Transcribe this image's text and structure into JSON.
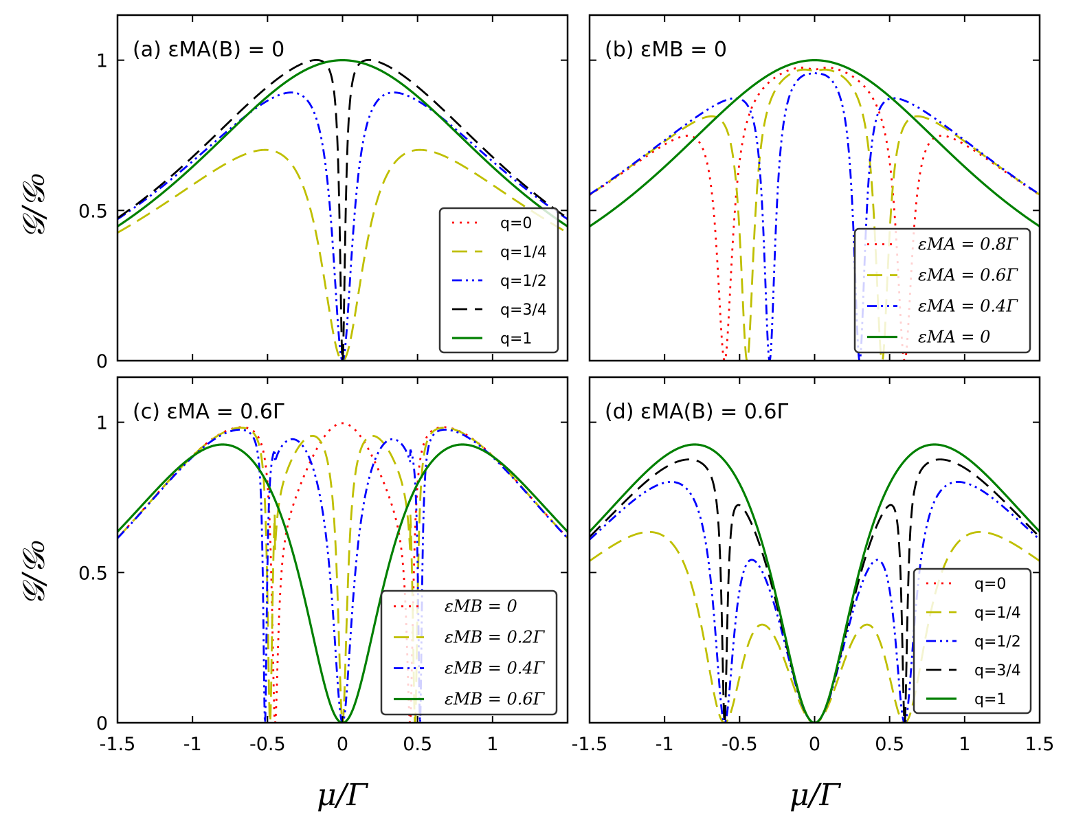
{
  "figure": {
    "ylabel": "𝒢/𝒢₀",
    "xlabel": "μ/Γ"
  },
  "colors": {
    "red": "#ff0000",
    "yellow": "#bfbf00",
    "blue": "#0000ff",
    "black": "#000000",
    "green": "#008000"
  },
  "chart_data": [
    {
      "type": "line",
      "panel": "a",
      "title": "(a) εMA(B) = 0",
      "xlim": [
        -1.5,
        1.5
      ],
      "ylim": [
        0,
        1.15
      ],
      "yticks": [
        "0",
        "0.5",
        "1"
      ],
      "xticks": [],
      "legend": "bottom-right",
      "model": "a",
      "series": [
        {
          "name": "q=0",
          "style": "red",
          "param": 0
        },
        {
          "name": "q=1/4",
          "style": "yellow",
          "param": 0.25
        },
        {
          "name": "q=1/2",
          "style": "blue",
          "param": 0.5
        },
        {
          "name": "q=3/4",
          "style": "black",
          "param": 0.75
        },
        {
          "name": "q=1",
          "style": "green",
          "param": 1
        }
      ]
    },
    {
      "type": "line",
      "panel": "b",
      "title": "(b) εMB = 0",
      "xlim": [
        -1.5,
        1.5
      ],
      "ylim": [
        0,
        1.15
      ],
      "yticks": [],
      "xticks": [],
      "legend": "bottom-right",
      "model": "b",
      "series": [
        {
          "name": "εMA = 0.8Γ",
          "style": "red",
          "param": 0.8
        },
        {
          "name": "εMA = 0.6Γ",
          "style": "yellow",
          "param": 0.6
        },
        {
          "name": "εMA = 0.4Γ",
          "style": "blue",
          "param": 0.4
        },
        {
          "name": "εMA = 0",
          "style": "green",
          "param": 0
        }
      ]
    },
    {
      "type": "line",
      "panel": "c",
      "title": "(c) εMA = 0.6Γ",
      "xlim": [
        -1.5,
        1.5
      ],
      "ylim": [
        0,
        1.15
      ],
      "yticks": [
        "0",
        "0.5",
        "1"
      ],
      "xticks": [
        "-1.5",
        "-1",
        "-0.5",
        "0",
        "0.5",
        "1"
      ],
      "legend": "bottom-right",
      "model": "c",
      "series": [
        {
          "name": "εMB = 0",
          "style": "red",
          "param": 0
        },
        {
          "name": "εMB = 0.2Γ",
          "style": "yellow",
          "param": 0.2
        },
        {
          "name": "εMB = 0.4Γ",
          "style": "blue",
          "param": 0.4
        },
        {
          "name": "εMB = 0.6Γ",
          "style": "green",
          "param": 0.6
        }
      ]
    },
    {
      "type": "line",
      "panel": "d",
      "title": "(d) εMA(B) = 0.6Γ",
      "xlim": [
        -1.5,
        1.5
      ],
      "ylim": [
        0,
        1.15
      ],
      "yticks": [],
      "xticks": [
        "-1.5",
        "-1",
        "-0.5",
        "0",
        "0.5",
        "1",
        "1.5"
      ],
      "legend": "bottom-right",
      "model": "d",
      "series": [
        {
          "name": "q=0",
          "style": "red",
          "param": 0
        },
        {
          "name": "q=1/4",
          "style": "yellow",
          "param": 0.25
        },
        {
          "name": "q=1/2",
          "style": "blue",
          "param": 0.5
        },
        {
          "name": "q=3/4",
          "style": "black",
          "param": 0.75
        },
        {
          "name": "q=1",
          "style": "green",
          "param": 1
        }
      ]
    }
  ]
}
